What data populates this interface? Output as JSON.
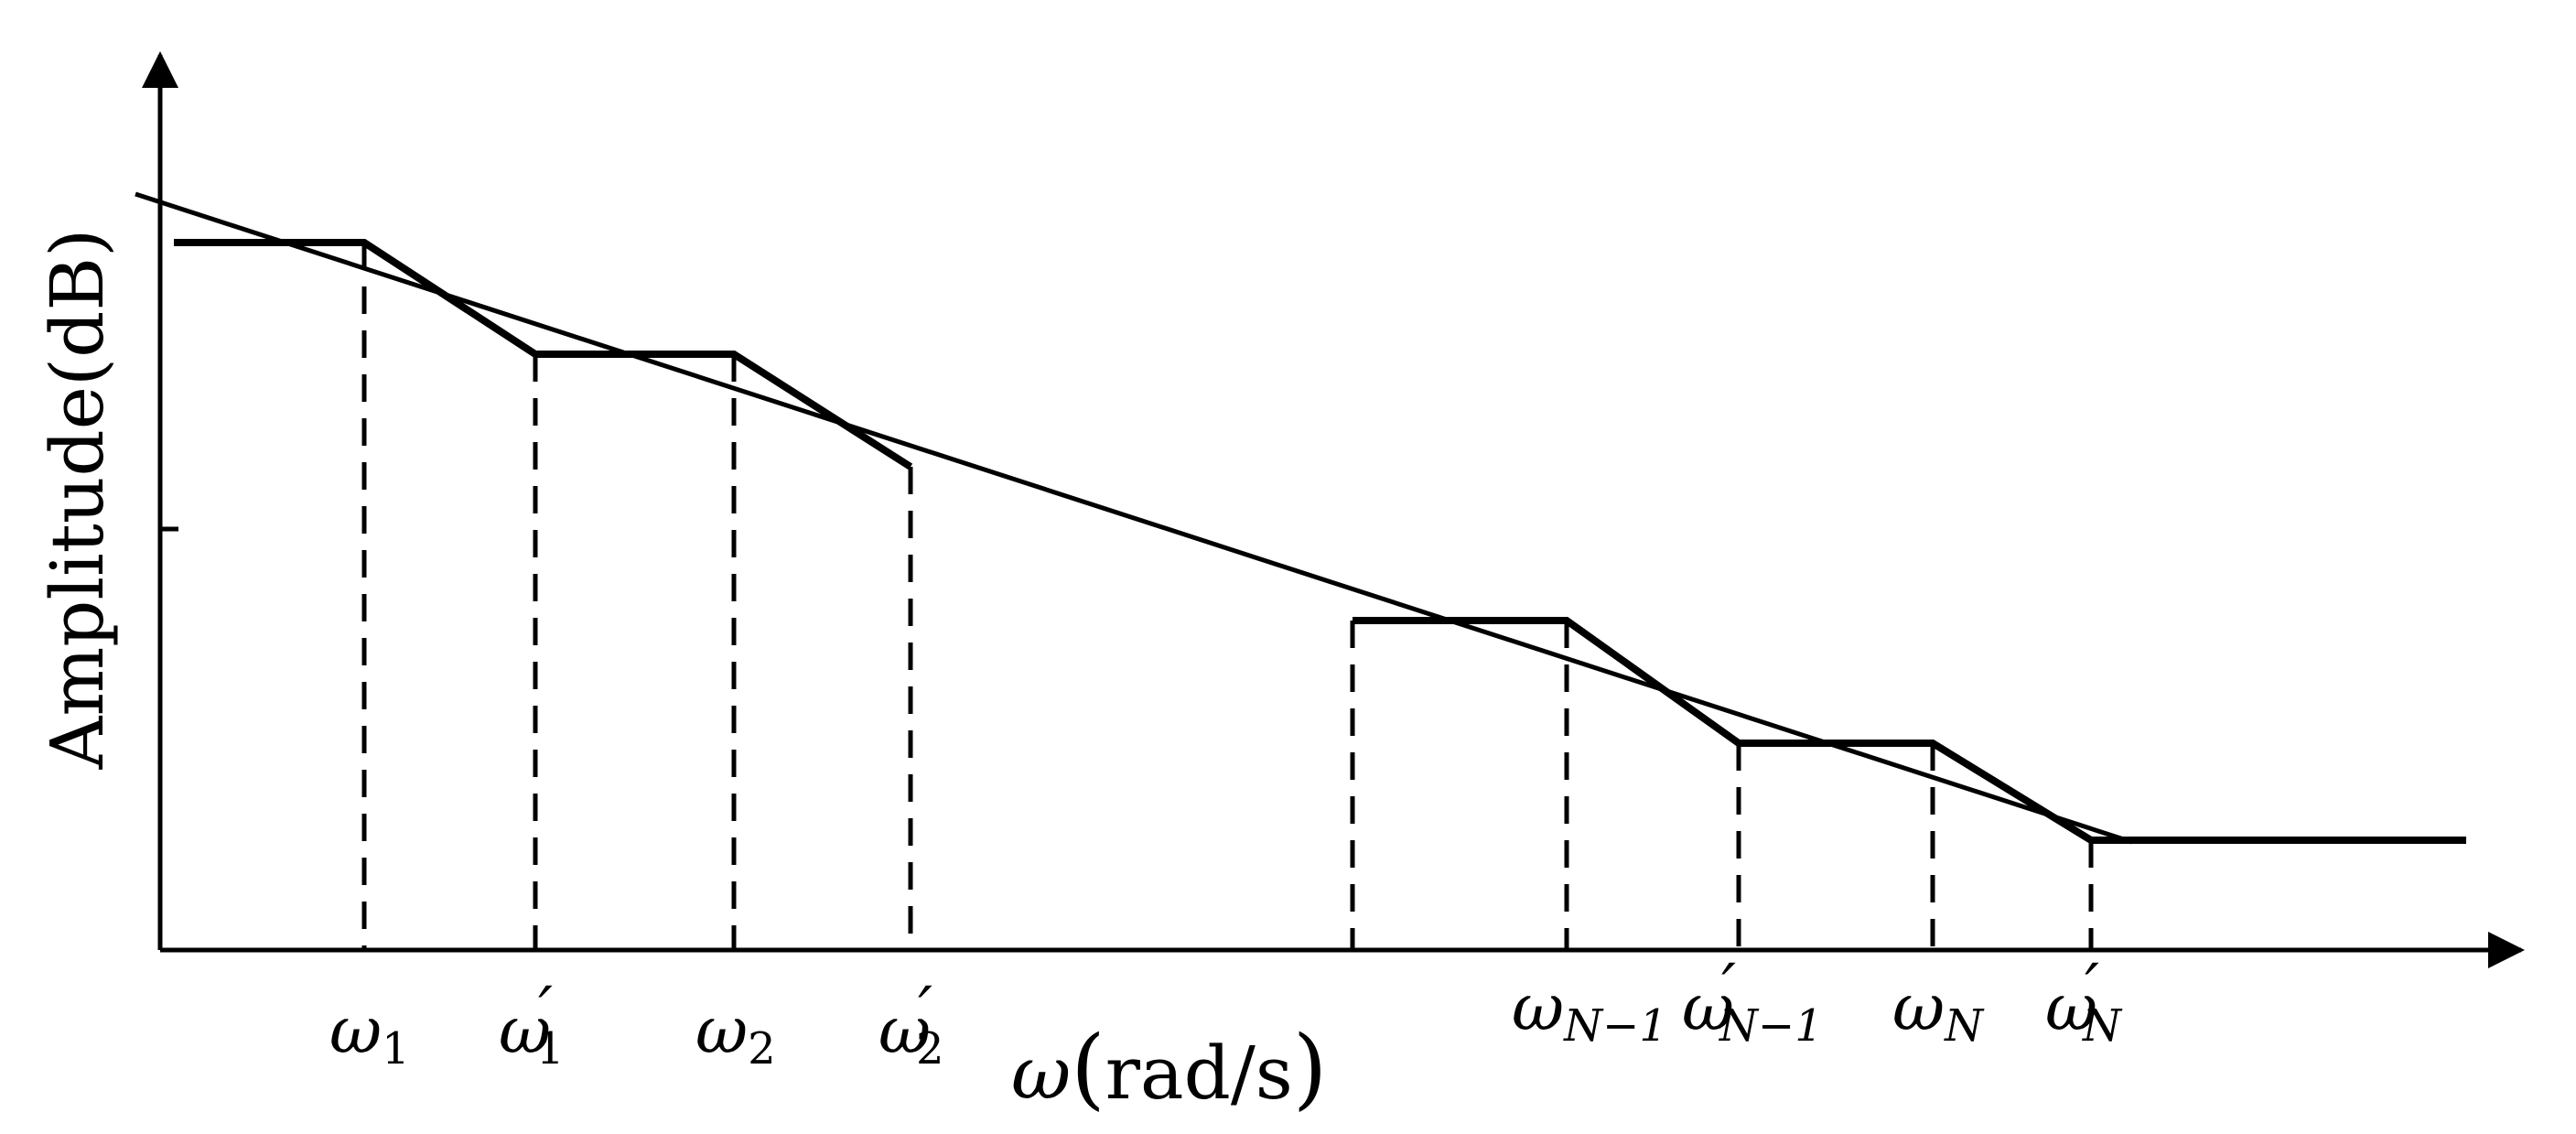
{
  "y_axis_label": "Amplitude(dB)",
  "x_axis_label": {
    "symbol": "ω",
    "unit": "rad/s"
  },
  "frequency_labels": [
    {
      "symbol": "ω",
      "prime": "",
      "sub": "1",
      "sub_italic": false
    },
    {
      "symbol": "ω",
      "prime": "′",
      "sub": "1",
      "sub_italic": false
    },
    {
      "symbol": "ω",
      "prime": "",
      "sub": "2",
      "sub_italic": false
    },
    {
      "symbol": "ω",
      "prime": "′",
      "sub": "2",
      "sub_italic": false
    },
    {
      "symbol": "ω",
      "prime": "",
      "sub": "N−1",
      "sub_italic": true
    },
    {
      "symbol": "ω",
      "prime": "′",
      "sub": "N−1",
      "sub_italic": true
    },
    {
      "symbol": "ω",
      "prime": "",
      "sub": "N",
      "sub_italic": true
    },
    {
      "symbol": "ω",
      "prime": "′",
      "sub": "N",
      "sub_italic": true
    }
  ],
  "colors": {
    "stroke": "#000000",
    "background": "#ffffff"
  }
}
